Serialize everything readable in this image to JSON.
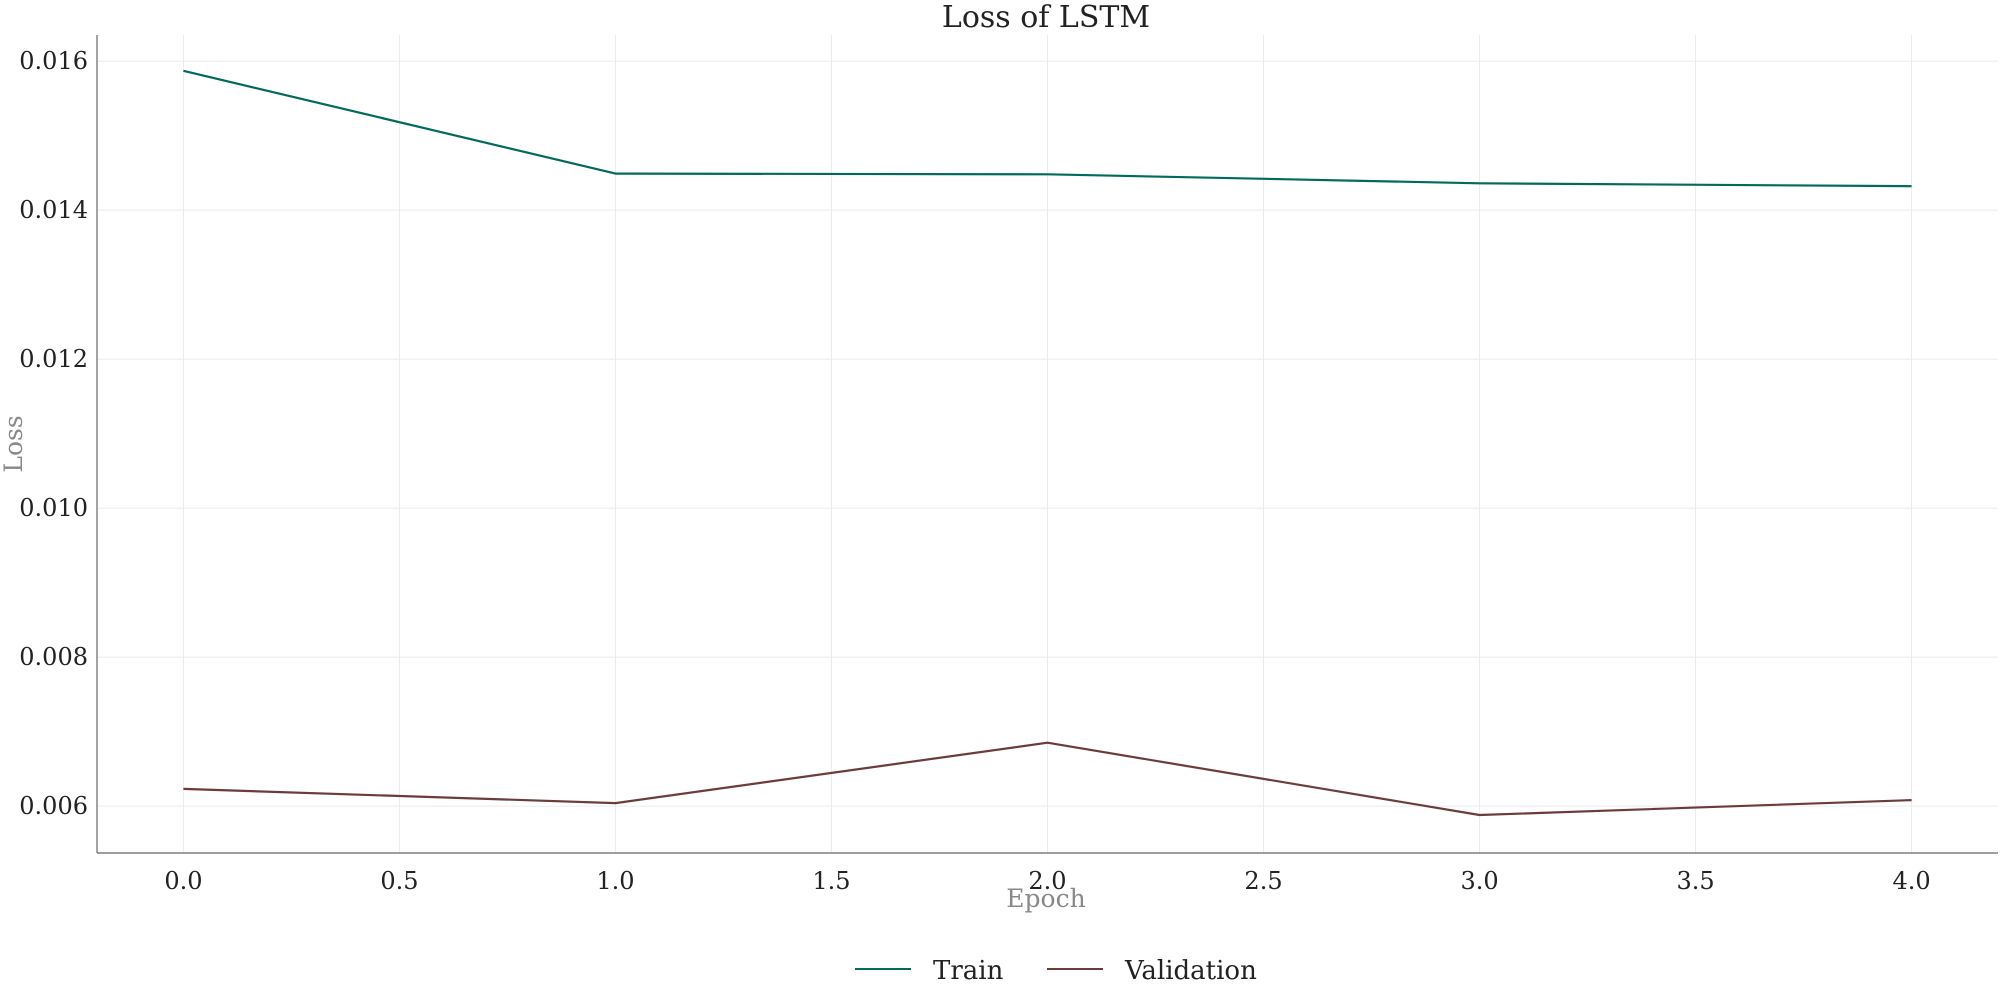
{
  "chart_data": {
    "type": "line",
    "title": "Loss of LSTM",
    "xlabel": "Epoch",
    "ylabel": "Loss",
    "x": [
      0,
      1,
      2,
      3,
      4
    ],
    "xlim": [
      -0.2,
      4.2
    ],
    "ylim": [
      0.00537,
      0.01635
    ],
    "xticks": [
      0.0,
      0.5,
      1.0,
      1.5,
      2.0,
      2.5,
      3.0,
      3.5,
      4.0
    ],
    "xtick_labels": [
      "0.0",
      "0.5",
      "1.0",
      "1.5",
      "2.0",
      "2.5",
      "3.0",
      "3.5",
      "4.0"
    ],
    "yticks": [
      0.006,
      0.008,
      0.01,
      0.012,
      0.014,
      0.016
    ],
    "ytick_labels": [
      "0.006",
      "0.008",
      "0.010",
      "0.012",
      "0.014",
      "0.016"
    ],
    "grid": true,
    "legend_position": "bottom-center",
    "series": [
      {
        "name": "Train",
        "color": "#006b5a",
        "values": [
          0.01587,
          0.01449,
          0.01448,
          0.01436,
          0.01432
        ]
      },
      {
        "name": "Validation",
        "color": "#6e3b3b",
        "values": [
          0.00623,
          0.00604,
          0.00685,
          0.00588,
          0.00608
        ]
      }
    ]
  }
}
